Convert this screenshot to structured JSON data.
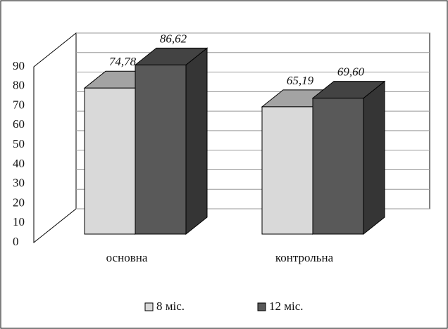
{
  "chart_data": {
    "type": "bar3d",
    "categories": [
      "основна",
      "контрольна"
    ],
    "series": [
      {
        "name": "8 міс.",
        "color": "#d9d9d9",
        "values": [
          74.78,
          65.19
        ],
        "value_labels": [
          "74,78",
          "65,19"
        ]
      },
      {
        "name": "12 міс.",
        "color": "#595959",
        "values": [
          86.62,
          69.6
        ],
        "value_labels": [
          "86,62",
          "69,60"
        ]
      }
    ],
    "ylim": [
      0,
      90
    ],
    "yticks": [
      0,
      10,
      20,
      30,
      40,
      50,
      60,
      70,
      80,
      90
    ],
    "grid": true,
    "legend": "bottom"
  }
}
